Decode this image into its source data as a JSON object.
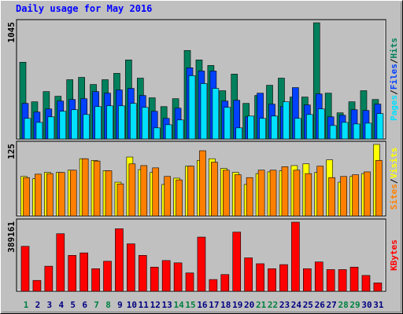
{
  "chart_data": [
    {
      "type": "bar",
      "title": "Daily usage for May 2016",
      "ylim": [
        0,
        1045
      ],
      "yticks": [
        1045
      ],
      "grid": false,
      "legend_separator": "/",
      "series": [
        {
          "name": "Hits",
          "color": "#00805c",
          "values": [
            690,
            334,
            426,
            384,
            533,
            554,
            490,
            533,
            590,
            711,
            547,
            370,
            291,
            362,
            796,
            711,
            661,
            434,
            583,
            320,
            391,
            483,
            547,
            377,
            377,
            1045,
            412,
            235,
            334,
            434,
            355
          ]
        },
        {
          "name": "Files",
          "color": "#0040ff",
          "values": [
            320,
            242,
            270,
            341,
            355,
            362,
            426,
            412,
            441,
            455,
            391,
            249,
            185,
            277,
            640,
            611,
            611,
            341,
            348,
            199,
            412,
            313,
            291,
            462,
            306,
            405,
            199,
            213,
            263,
            256,
            313
          ]
        },
        {
          "name": "Pages",
          "color": "#00e0ff",
          "values": [
            185,
            149,
            199,
            249,
            263,
            220,
            291,
            298,
            298,
            320,
            284,
            100,
            128,
            171,
            569,
            498,
            455,
            284,
            100,
            206,
            185,
            206,
            334,
            185,
            220,
            270,
            121,
            149,
            135,
            142,
            228
          ]
        }
      ]
    },
    {
      "type": "bar",
      "ylim": [
        0,
        125
      ],
      "yticks": [
        125
      ],
      "grid": false,
      "legend_separator": "/",
      "series": [
        {
          "name": "Visits",
          "color": "#ffff00",
          "values": [
            69,
            65,
            76,
            76,
            80,
            100,
            97,
            79,
            59,
            103,
            81,
            76,
            55,
            66,
            87,
            97,
            100,
            83,
            76,
            55,
            74,
            77,
            79,
            88,
            91,
            76,
            98,
            59,
            69,
            74,
            125
          ]
        },
        {
          "name": "Sites",
          "color": "#ff8000",
          "values": [
            67,
            73,
            74,
            76,
            80,
            100,
            96,
            79,
            56,
            91,
            88,
            84,
            69,
            63,
            87,
            114,
            94,
            80,
            72,
            67,
            80,
            80,
            86,
            80,
            74,
            87,
            67,
            69,
            72,
            77,
            97
          ]
        }
      ]
    },
    {
      "type": "bar",
      "ylim": [
        0,
        389161
      ],
      "yticks": [
        389161
      ],
      "grid": false,
      "categories": [
        "1",
        "2",
        "3",
        "4",
        "5",
        "6",
        "7",
        "8",
        "9",
        "10",
        "11",
        "12",
        "13",
        "14",
        "15",
        "16",
        "17",
        "18",
        "19",
        "20",
        "21",
        "22",
        "23",
        "24",
        "25",
        "26",
        "27",
        "28",
        "29",
        "30",
        "31"
      ],
      "category_colors": [
        "#008040",
        "#000080",
        "#000080",
        "#000080",
        "#000080",
        "#000080",
        "#008040",
        "#008040",
        "#000080",
        "#000080",
        "#000080",
        "#000080",
        "#000080",
        "#008040",
        "#008040",
        "#000080",
        "#000080",
        "#000080",
        "#000080",
        "#000080",
        "#008040",
        "#008040",
        "#000080",
        "#000080",
        "#000080",
        "#000080",
        "#000080",
        "#008040",
        "#008040",
        "#000080",
        "#000080"
      ],
      "series": [
        {
          "name": "KBytes",
          "color": "#ff0000",
          "values": [
            253000,
            61000,
            141000,
            324000,
            202000,
            216000,
            127000,
            169000,
            352000,
            267000,
            202000,
            136000,
            173000,
            160000,
            103000,
            305000,
            66000,
            94000,
            333000,
            188000,
            155000,
            127000,
            150000,
            389161,
            127000,
            165000,
            122000,
            122000,
            136000,
            89000,
            47000
          ]
        }
      ]
    }
  ]
}
